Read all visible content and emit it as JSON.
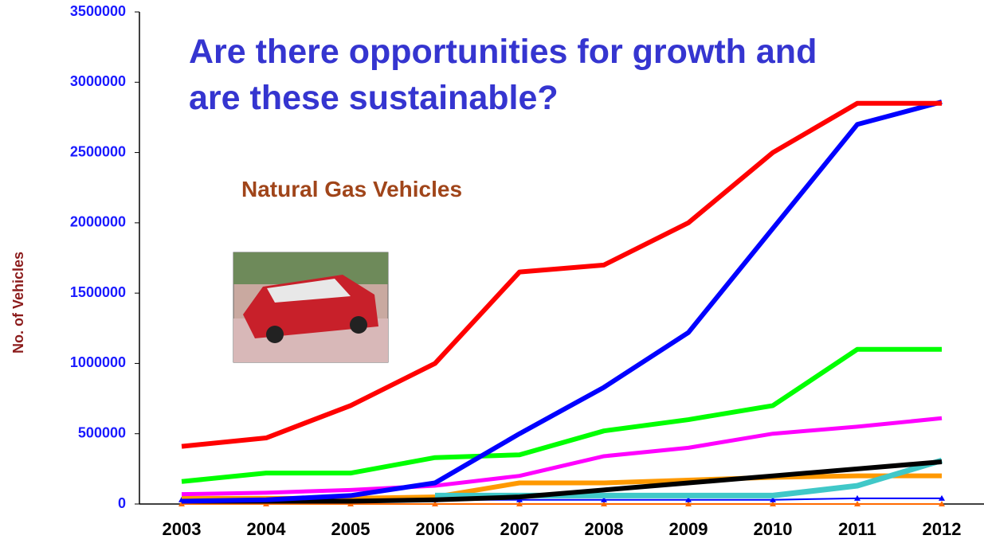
{
  "chart_data": {
    "type": "line",
    "title": "Are there opportunities for growth and are these sustainable?",
    "annotation": "Natural Gas Vehicles",
    "y_label": "No. of Vehicles",
    "categories": [
      "2003",
      "2004",
      "2005",
      "2006",
      "2007",
      "2008",
      "2009",
      "2010",
      "2011",
      "2012"
    ],
    "ylim": [
      0,
      3500000
    ],
    "yticks": [
      0,
      500000,
      1000000,
      1500000,
      2000000,
      2500000,
      3000000,
      3500000
    ],
    "grid": false,
    "series": [
      {
        "color": "#ff6a00",
        "values": [
          0,
          0,
          0,
          0,
          0,
          0,
          0,
          0,
          0,
          0
        ],
        "width": 2,
        "markers": true
      },
      {
        "color": "#0000ff",
        "values": [
          30000,
          30000,
          30000,
          30000,
          30000,
          30000,
          30000,
          30000,
          40000,
          40000
        ],
        "width": 2,
        "markers": true
      },
      {
        "color": "#ff9900",
        "values": [
          40000,
          40000,
          40000,
          50000,
          150000,
          150000,
          170000,
          190000,
          200000,
          200000
        ],
        "width": 6
      },
      {
        "color": "#40c8c8",
        "values": [
          null,
          null,
          null,
          60000,
          60000,
          60000,
          60000,
          60000,
          130000,
          310000
        ],
        "width": 7
      },
      {
        "color": "#000000",
        "values": [
          20000,
          20000,
          20000,
          30000,
          50000,
          100000,
          150000,
          200000,
          250000,
          300000
        ],
        "width": 6
      },
      {
        "color": "#ff00ff",
        "values": [
          70000,
          80000,
          100000,
          130000,
          200000,
          340000,
          400000,
          500000,
          550000,
          610000
        ],
        "width": 5
      },
      {
        "color": "#00ff00",
        "values": [
          160000,
          220000,
          220000,
          330000,
          350000,
          520000,
          600000,
          700000,
          1100000,
          1100000
        ],
        "width": 6
      },
      {
        "color": "#0000ff",
        "values": [
          20000,
          30000,
          60000,
          150000,
          500000,
          830000,
          1220000,
          1960000,
          2700000,
          2860000
        ],
        "width": 6
      },
      {
        "color": "#ff0000",
        "values": [
          410000,
          470000,
          700000,
          1000000,
          1650000,
          1700000,
          2000000,
          2500000,
          2850000,
          2850000
        ],
        "width": 6
      }
    ]
  }
}
